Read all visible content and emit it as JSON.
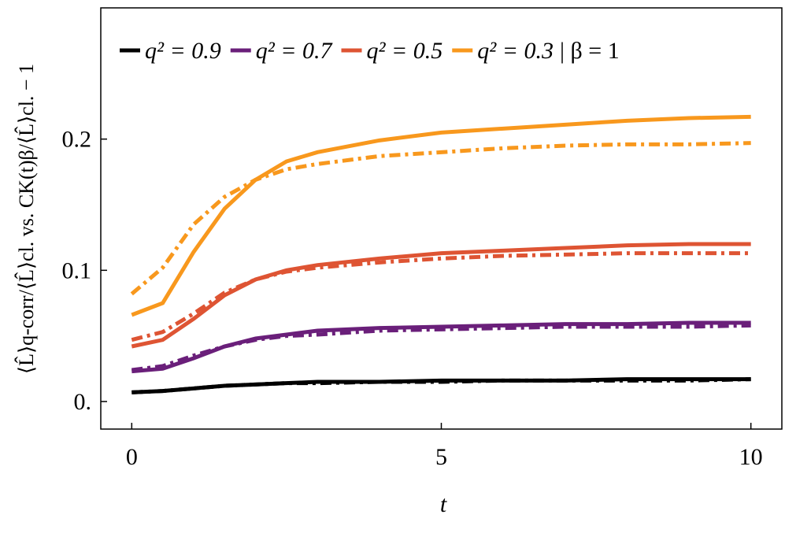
{
  "chart_data": {
    "type": "line",
    "xlabel": "t",
    "ylabel": "⟨L̂⟩q-corr/⟨L̂⟩cl. vs. CK(t)β/⟨L̂⟩cl. − 1",
    "legend_note": "| β = 1",
    "legend": "top-left",
    "x": [
      0,
      0.5,
      1,
      1.5,
      2,
      2.5,
      3,
      4,
      5,
      6,
      7,
      8,
      9,
      10
    ],
    "series": [
      {
        "name": "q² = 0.9",
        "color": "#000000",
        "values": [
          0.007,
          0.008,
          0.01,
          0.012,
          0.013,
          0.014,
          0.015,
          0.015,
          0.016,
          0.016,
          0.016,
          0.017,
          0.017,
          0.017
        ],
        "dash_dot_values": [
          0.007,
          0.008,
          0.01,
          0.012,
          0.013,
          0.014,
          0.014,
          0.015,
          0.015,
          0.016,
          0.016,
          0.016,
          0.016,
          0.017
        ]
      },
      {
        "name": "q² = 0.7",
        "color": "#6a1f7a",
        "values": [
          0.023,
          0.025,
          0.033,
          0.042,
          0.048,
          0.051,
          0.054,
          0.056,
          0.057,
          0.058,
          0.059,
          0.059,
          0.06,
          0.06
        ],
        "dash_dot_values": [
          0.024,
          0.027,
          0.035,
          0.042,
          0.047,
          0.05,
          0.051,
          0.054,
          0.055,
          0.056,
          0.057,
          0.057,
          0.057,
          0.058
        ]
      },
      {
        "name": "q² = 0.5",
        "color": "#de5433",
        "values": [
          0.042,
          0.047,
          0.063,
          0.081,
          0.093,
          0.1,
          0.104,
          0.109,
          0.113,
          0.115,
          0.117,
          0.119,
          0.12,
          0.12
        ],
        "dash_dot_values": [
          0.047,
          0.053,
          0.067,
          0.083,
          0.093,
          0.099,
          0.102,
          0.106,
          0.109,
          0.111,
          0.112,
          0.113,
          0.113,
          0.113
        ]
      },
      {
        "name": "q² = 0.3",
        "color": "#f8981d",
        "values": [
          0.066,
          0.075,
          0.114,
          0.147,
          0.169,
          0.183,
          0.19,
          0.199,
          0.205,
          0.208,
          0.211,
          0.214,
          0.216,
          0.217
        ],
        "dash_dot_values": [
          0.082,
          0.102,
          0.135,
          0.156,
          0.169,
          0.177,
          0.181,
          0.187,
          0.19,
          0.193,
          0.195,
          0.196,
          0.196,
          0.197
        ]
      }
    ],
    "xlim": [
      -0.5,
      10.5
    ],
    "xticks": [
      0,
      5,
      10
    ],
    "ylim": [
      -0.021,
      0.3
    ],
    "yticks": [
      {
        "value": 0,
        "label": "0."
      },
      0.1,
      0.2
    ]
  }
}
